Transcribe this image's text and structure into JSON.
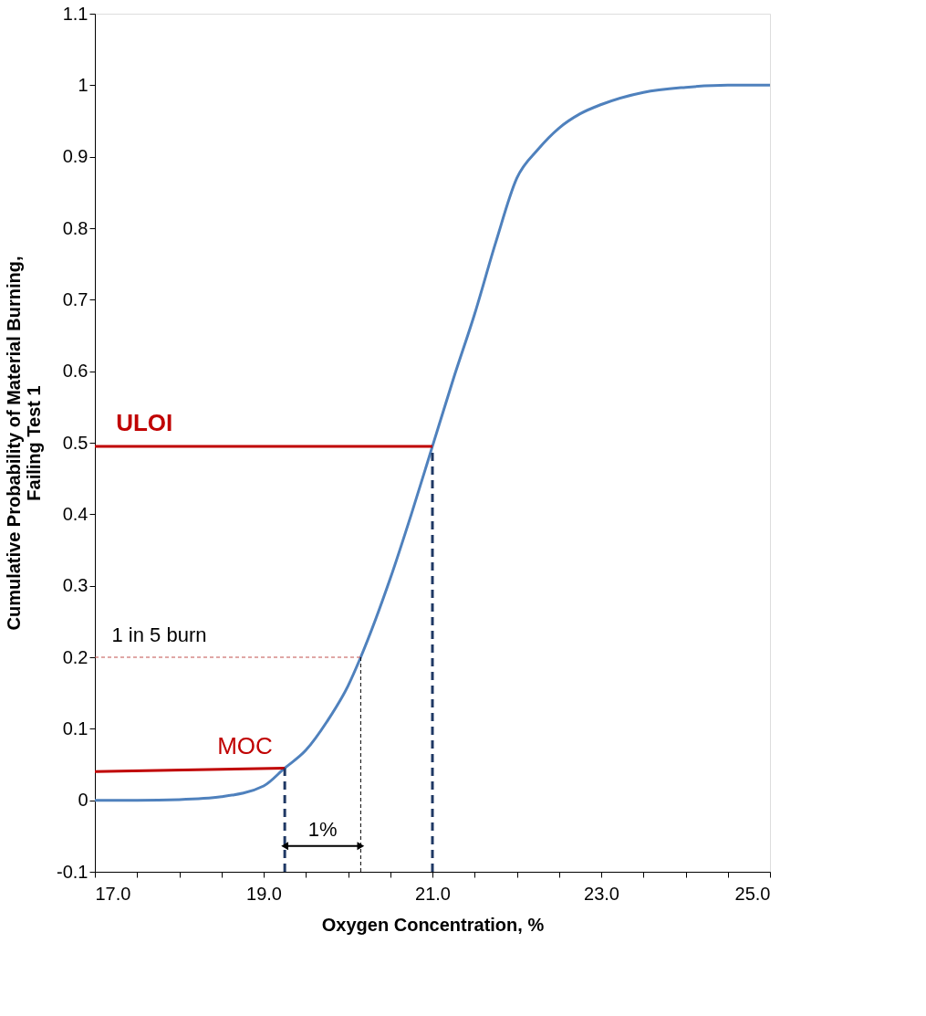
{
  "chart_data": {
    "type": "line",
    "xlabel": "Oxygen Concentration, %",
    "ylabel": "Cumulative Probability of Material Burning,\nFailing Test 1",
    "xlim": [
      17.0,
      25.0
    ],
    "xticks": [
      {
        "value": 17,
        "label": "17.0"
      },
      {
        "value": 17.5,
        "label": null
      },
      {
        "value": 18,
        "label": null
      },
      {
        "value": 18.5,
        "label": null
      },
      {
        "value": 19,
        "label": "19.0"
      },
      {
        "value": 19.5,
        "label": null
      },
      {
        "value": 20,
        "label": null
      },
      {
        "value": 20.5,
        "label": null
      },
      {
        "value": 21,
        "label": "21.0"
      },
      {
        "value": 21.5,
        "label": null
      },
      {
        "value": 22,
        "label": null
      },
      {
        "value": 22.5,
        "label": null
      },
      {
        "value": 23,
        "label": "23.0"
      },
      {
        "value": 23.5,
        "label": null
      },
      {
        "value": 24,
        "label": null
      },
      {
        "value": 24.5,
        "label": null
      },
      {
        "value": 25,
        "label": "25.0"
      }
    ],
    "ylim": [
      -0.1,
      1.1
    ],
    "yticks": [
      -0.1,
      0,
      0.1,
      0.2,
      0.3,
      0.4,
      0.5,
      0.6,
      0.7,
      0.8,
      0.9,
      1,
      1.1
    ],
    "grid": false,
    "legend": false,
    "marker": "none",
    "series": [
      {
        "color": "#4f81bd",
        "line_style": "solid",
        "x": [
          17.0,
          17.5,
          18.0,
          18.5,
          19.0,
          19.25,
          19.5,
          19.75,
          20.0,
          20.15,
          20.5,
          20.75,
          21.0,
          21.25,
          21.5,
          21.75,
          22.0,
          22.25,
          22.5,
          22.75,
          23.0,
          23.5,
          24.0,
          24.5,
          25.0
        ],
        "values": [
          0.0,
          0.0,
          0.001,
          0.005,
          0.02,
          0.045,
          0.07,
          0.11,
          0.16,
          0.2,
          0.31,
          0.4,
          0.495,
          0.59,
          0.68,
          0.78,
          0.87,
          0.91,
          0.94,
          0.96,
          0.973,
          0.99,
          0.997,
          1.0,
          1.0
        ]
      },
      {
        "color": "#c00000",
        "line_style": "solid",
        "x": [
          17.0,
          21.0
        ],
        "values": [
          0.495,
          0.495
        ]
      },
      {
        "color": "#c00000",
        "line_style": "solid",
        "x": [
          17.0,
          19.25
        ],
        "values": [
          0.04,
          0.045
        ]
      },
      {
        "color": "#c0504d",
        "line_style": "dotted",
        "x": [
          17.0,
          20.15
        ],
        "values": [
          0.2,
          0.2
        ]
      },
      {
        "color": "#1f3864",
        "line_style": "dashed",
        "x": [
          21.0,
          21.0
        ],
        "values": [
          -0.1,
          0.49
        ]
      },
      {
        "color": "#1f3864",
        "line_style": "dashed",
        "x": [
          19.25,
          19.25
        ],
        "values": [
          -0.1,
          0.045
        ]
      },
      {
        "color": "#000000",
        "line_style": "dotted",
        "x": [
          20.15,
          20.15
        ],
        "values": [
          -0.1,
          0.2
        ]
      }
    ],
    "annotations": [
      {
        "text": "ULOI",
        "x": 17.25,
        "y": 0.495
      },
      {
        "text": "1 in 5 burn",
        "x": 17.2,
        "y": 0.2
      },
      {
        "text": "MOC",
        "x": 18.45,
        "y": 0.043
      },
      "1%"
    ]
  }
}
